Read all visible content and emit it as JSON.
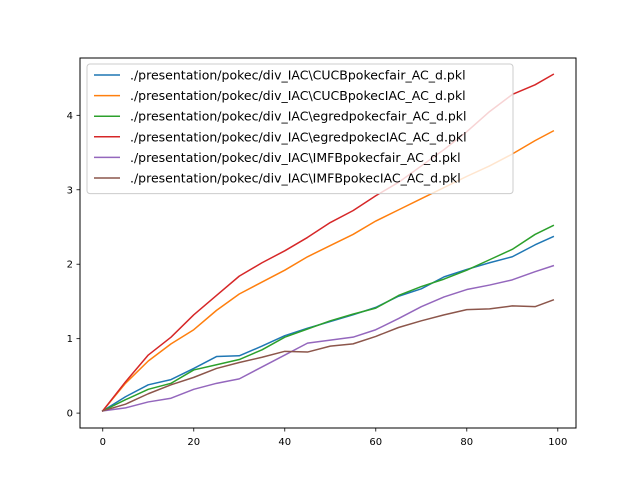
{
  "chart_data": {
    "type": "line",
    "title": "",
    "xlabel": "",
    "ylabel": "",
    "xlim": [
      -5,
      104
    ],
    "ylim": [
      -0.2,
      4.77
    ],
    "xticks": [
      0,
      20,
      40,
      60,
      80,
      100
    ],
    "yticks": [
      0,
      1,
      2,
      3,
      4
    ],
    "xtick_labels": [
      "0",
      "20",
      "40",
      "60",
      "80",
      "100"
    ],
    "ytick_labels": [
      "0",
      "1",
      "2",
      "3",
      "4"
    ],
    "grid": false,
    "legend_position": "top-left",
    "series": [
      {
        "name": "./presentation/pokec/div_IAC\\CUCBpokecfair_AC_d.pkl",
        "color": "#1f77b4",
        "x": [
          0,
          5,
          10,
          15,
          20,
          25,
          30,
          35,
          40,
          45,
          50,
          55,
          60,
          65,
          70,
          75,
          80,
          85,
          90,
          95,
          99
        ],
        "y": [
          0.03,
          0.22,
          0.38,
          0.45,
          0.6,
          0.76,
          0.77,
          0.9,
          1.04,
          1.14,
          1.23,
          1.32,
          1.42,
          1.57,
          1.67,
          1.83,
          1.93,
          2.02,
          2.1,
          2.26,
          2.37
        ]
      },
      {
        "name": "./presentation/pokec/div_IAC\\CUCBpokecIAC_AC_d.pkl",
        "color": "#ff7f0e",
        "x": [
          0,
          5,
          10,
          15,
          20,
          25,
          30,
          35,
          40,
          45,
          50,
          55,
          60,
          65,
          70,
          75,
          80,
          85,
          90,
          95,
          99
        ],
        "y": [
          0.03,
          0.4,
          0.7,
          0.93,
          1.12,
          1.38,
          1.6,
          1.76,
          1.92,
          2.1,
          2.25,
          2.4,
          2.58,
          2.73,
          2.88,
          3.03,
          3.18,
          3.32,
          3.48,
          3.66,
          3.79
        ]
      },
      {
        "name": "./presentation/pokec/div_IAC\\egredpokecfair_AC_d.pkl",
        "color": "#2ca02c",
        "x": [
          0,
          5,
          10,
          15,
          20,
          25,
          30,
          35,
          40,
          45,
          50,
          55,
          60,
          65,
          70,
          75,
          80,
          85,
          90,
          95,
          99
        ],
        "y": [
          0.03,
          0.18,
          0.32,
          0.4,
          0.58,
          0.65,
          0.72,
          0.85,
          1.02,
          1.13,
          1.24,
          1.33,
          1.41,
          1.58,
          1.7,
          1.8,
          1.92,
          2.06,
          2.2,
          2.4,
          2.52
        ]
      },
      {
        "name": "./presentation/pokec/div_IAC\\egredpokecIAC_AC_d.pkl",
        "color": "#d62728",
        "x": [
          0,
          5,
          10,
          15,
          20,
          25,
          30,
          35,
          40,
          45,
          50,
          55,
          60,
          65,
          70,
          75,
          80,
          85,
          90,
          95,
          99
        ],
        "y": [
          0.03,
          0.42,
          0.78,
          1.02,
          1.32,
          1.58,
          1.84,
          2.02,
          2.18,
          2.36,
          2.56,
          2.72,
          2.92,
          3.1,
          3.32,
          3.54,
          3.78,
          4.05,
          4.28,
          4.41,
          4.55
        ]
      },
      {
        "name": "./presentation/pokec/div_IAC\\IMFBpokecfair_AC_d.pkl",
        "color": "#9467bd",
        "x": [
          0,
          5,
          10,
          15,
          20,
          25,
          30,
          35,
          40,
          45,
          50,
          55,
          60,
          65,
          70,
          75,
          80,
          85,
          90,
          95,
          99
        ],
        "y": [
          0.03,
          0.07,
          0.15,
          0.2,
          0.32,
          0.4,
          0.46,
          0.62,
          0.78,
          0.94,
          0.98,
          1.02,
          1.12,
          1.27,
          1.43,
          1.56,
          1.66,
          1.72,
          1.79,
          1.9,
          1.98
        ]
      },
      {
        "name": "./presentation/pokec/div_IAC\\IMFBpokecIAC_AC_d.pkl",
        "color": "#8c564b",
        "x": [
          0,
          5,
          10,
          15,
          20,
          25,
          30,
          35,
          40,
          45,
          50,
          55,
          60,
          65,
          70,
          75,
          80,
          85,
          90,
          95,
          99
        ],
        "y": [
          0.03,
          0.12,
          0.26,
          0.38,
          0.48,
          0.6,
          0.68,
          0.75,
          0.83,
          0.82,
          0.9,
          0.93,
          1.03,
          1.15,
          1.24,
          1.32,
          1.39,
          1.4,
          1.44,
          1.43,
          1.52
        ]
      }
    ]
  }
}
